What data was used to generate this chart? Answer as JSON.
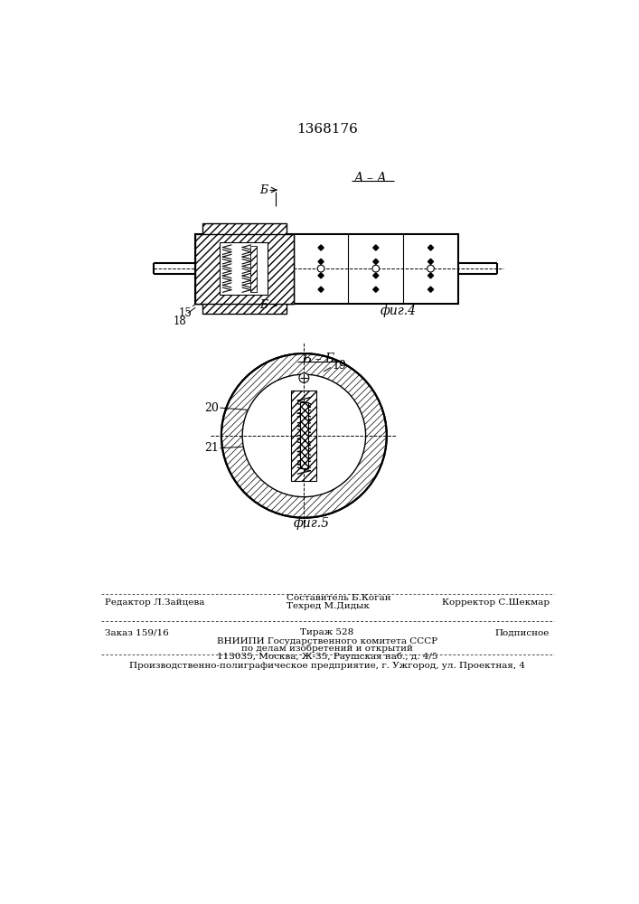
{
  "patent_number": "1368176",
  "fig4_label": "А – А",
  "fig4_caption": "фиг.4",
  "fig5_label": "Б – Б",
  "fig5_caption": "фиг.5",
  "section_b_label": "Б",
  "label_15": "15",
  "label_18": "18",
  "label_19": "19",
  "label_20": "20",
  "label_21": "21",
  "bg_color": "#ffffff",
  "footer_line1_left": "Редактор Л.Зайцева",
  "footer_line1_c1": "Составитель Б.Коган",
  "footer_line1_c2": "Техред М.Дидык",
  "footer_line1_right": "Корректор С.Шекмар",
  "footer_line2_left": "Заказ 159/16",
  "footer_line2_center": "Тираж 528",
  "footer_line2_right": "Подписное",
  "footer_line3a": "ВНИИПИ Государственного комитета СССР",
  "footer_line3b": "по делам изобретений и открытий",
  "footer_line3c": "113035, Москва, Ж-35, Раушская наб., д. 4/5",
  "footer_line4": "Производственно-полиграфическое предприятие, г. Ужгород, ул. Проектная, 4"
}
